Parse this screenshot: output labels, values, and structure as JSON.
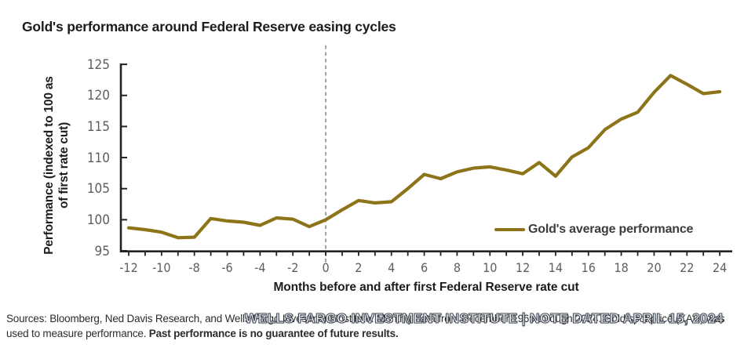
{
  "header": {
    "title": "Gold's performance around Federal Reserve easing cycles"
  },
  "chart_data": {
    "type": "line",
    "title": "Gold's performance around Federal Reserve easing cycles",
    "xlabel": "Months before and after first Federal Reserve rate cut",
    "ylabel": "Performance (indexed to 100 as of first rate cut)",
    "ylabel_lines": [
      "Performance (indexed to 100 as",
      "of first rate cut)"
    ],
    "xlim": [
      -12,
      24
    ],
    "ylim": [
      95,
      125
    ],
    "grid": false,
    "yticks": [
      95,
      100,
      105,
      110,
      115,
      120,
      125
    ],
    "xtick_labels": [
      -12,
      -10,
      -8,
      -6,
      -4,
      -2,
      0,
      2,
      4,
      6,
      8,
      10,
      12,
      14,
      16,
      18,
      20,
      22,
      24
    ],
    "minor_xtick_step": 1,
    "reference_line": {
      "x": 0,
      "style": "dashed",
      "color": "#8a8a8a"
    },
    "legend_position": "center-right",
    "series": [
      {
        "name": "Gold's average performance",
        "color": "#8E7418",
        "x": [
          -12,
          -11,
          -10,
          -9,
          -8,
          -7,
          -6,
          -5,
          -4,
          -3,
          -2,
          -1,
          0,
          1,
          2,
          3,
          4,
          5,
          6,
          7,
          8,
          9,
          10,
          11,
          12,
          13,
          14,
          15,
          16,
          17,
          18,
          19,
          20,
          21,
          22,
          23,
          24
        ],
        "y": [
          98.7,
          98.4,
          98.0,
          97.1,
          97.2,
          100.2,
          99.8,
          99.6,
          99.1,
          100.3,
          100.1,
          98.9,
          100.0,
          101.6,
          103.1,
          102.7,
          102.9,
          105.0,
          107.3,
          106.6,
          107.7,
          108.3,
          108.5,
          108.0,
          107.4,
          109.2,
          107.0,
          110.1,
          111.6,
          114.5,
          116.2,
          117.3,
          120.5,
          123.2,
          121.8,
          120.3,
          120.6
        ]
      }
    ],
    "colors": {
      "axis": "#222222",
      "tick_label": "#5e5e5e",
      "line": "#8E7418",
      "dashed_reference": "#8a8a8a"
    }
  },
  "legend": {
    "label": "Gold's average performance"
  },
  "footer": {
    "line1": "Sources: Bloomberg, Ned Davis Research, and Wells Fargo Investment Institute. Monthly data from December 1969 through 2024. Gold spot price (XAU) was",
    "line2_normal": "used to measure performance. ",
    "line2_bold": "Past performance is no guarantee of future results.",
    "watermark": "WELLS FARGO INVESTMENT INSTITUTE | NOTE DATED APRIL 15, 2024"
  }
}
